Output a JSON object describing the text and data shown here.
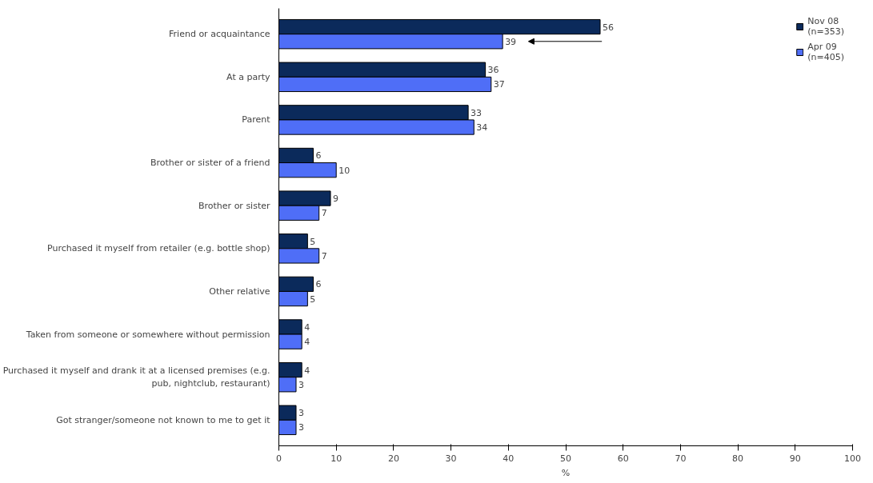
{
  "chart_data": {
    "type": "bar",
    "orientation": "horizontal",
    "xlabel": "%",
    "categories": [
      "Friend or acquaintance",
      "At a party",
      "Parent",
      "Brother or sister of a friend",
      "Brother or sister",
      "Purchased it myself from retailer (e.g. bottle shop)",
      "Other relative",
      "Taken from someone or somewhere without permission",
      "Purchased it myself and drank it at a licensed premises (e.g.\npub, nightclub, restaurant)",
      "Got stranger/someone not known to me to get it"
    ],
    "series": [
      {
        "name": "Nov 08\n(n=353)",
        "color": "#0b2a5b",
        "values": [
          56,
          36,
          33,
          6,
          9,
          5,
          6,
          4,
          4,
          3
        ]
      },
      {
        "name": "Apr 09\n(n=405)",
        "color": "#4f6ef7",
        "values": [
          39,
          37,
          34,
          10,
          7,
          7,
          5,
          4,
          3,
          3
        ]
      }
    ],
    "xlim": [
      0,
      100
    ],
    "xticks": [
      0,
      10,
      20,
      30,
      40,
      50,
      60,
      70,
      80,
      90,
      100
    ],
    "data_labels": true,
    "grid": false,
    "legend": "top right"
  }
}
